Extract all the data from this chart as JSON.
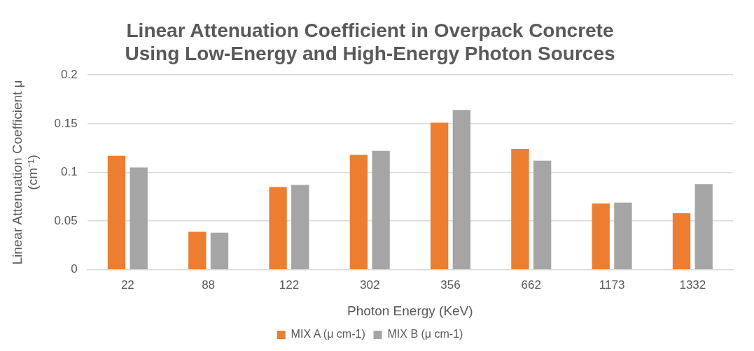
{
  "chart_data": {
    "type": "bar",
    "title": "Linear Attenuation Coefficient in Overpack Concrete\nUsing Low-Energy and High-Energy Photon Sources",
    "xlabel": "Photon Energy (KeV)",
    "ylabel": "Linear Attenuation Coefficient μ\n(cm⁻¹)",
    "categories": [
      "22",
      "88",
      "122",
      "302",
      "356",
      "662",
      "1173",
      "1332"
    ],
    "series": [
      {
        "name": "MIX A (μ cm-1)",
        "color": "#ed7d31",
        "values": [
          0.117,
          0.039,
          0.085,
          0.118,
          0.151,
          0.124,
          0.068,
          0.058
        ]
      },
      {
        "name": "MIX B (μ cm-1)",
        "color": "#a5a5a5",
        "values": [
          0.105,
          0.038,
          0.087,
          0.122,
          0.164,
          0.112,
          0.069,
          0.088
        ]
      }
    ],
    "ylim": [
      0,
      0.2
    ],
    "yticks": [
      0,
      0.05,
      0.1,
      0.15,
      0.2
    ],
    "grid": "y",
    "legend": "bottom"
  }
}
